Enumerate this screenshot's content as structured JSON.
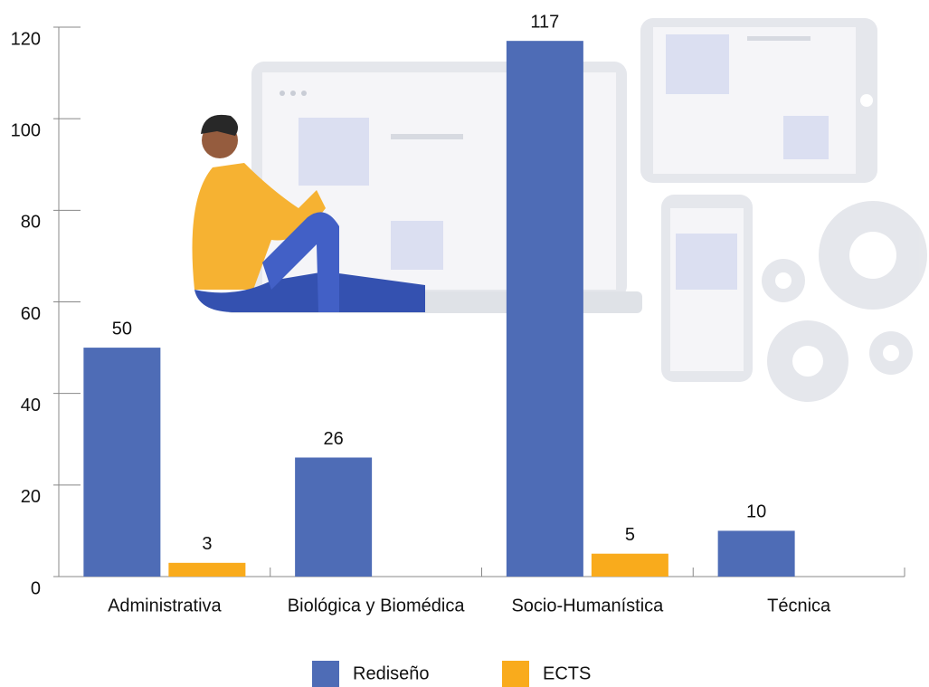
{
  "chart_data": {
    "type": "bar",
    "categories": [
      "Administrativa",
      "Biológica y Biomédica",
      "Socio-Humanística",
      "Técnica"
    ],
    "series": [
      {
        "name": "Rediseño",
        "color": "#4e6cb6",
        "values": [
          50,
          26,
          117,
          10
        ]
      },
      {
        "name": "ECTS",
        "color": "#f9ab1c",
        "values": [
          3,
          0,
          5,
          0
        ],
        "value_labels": [
          "3",
          null,
          "5",
          null
        ]
      }
    ],
    "ylim": [
      0,
      120
    ],
    "yticks": [
      0,
      20,
      40,
      60,
      80,
      100,
      120
    ],
    "legend": "bottom"
  }
}
